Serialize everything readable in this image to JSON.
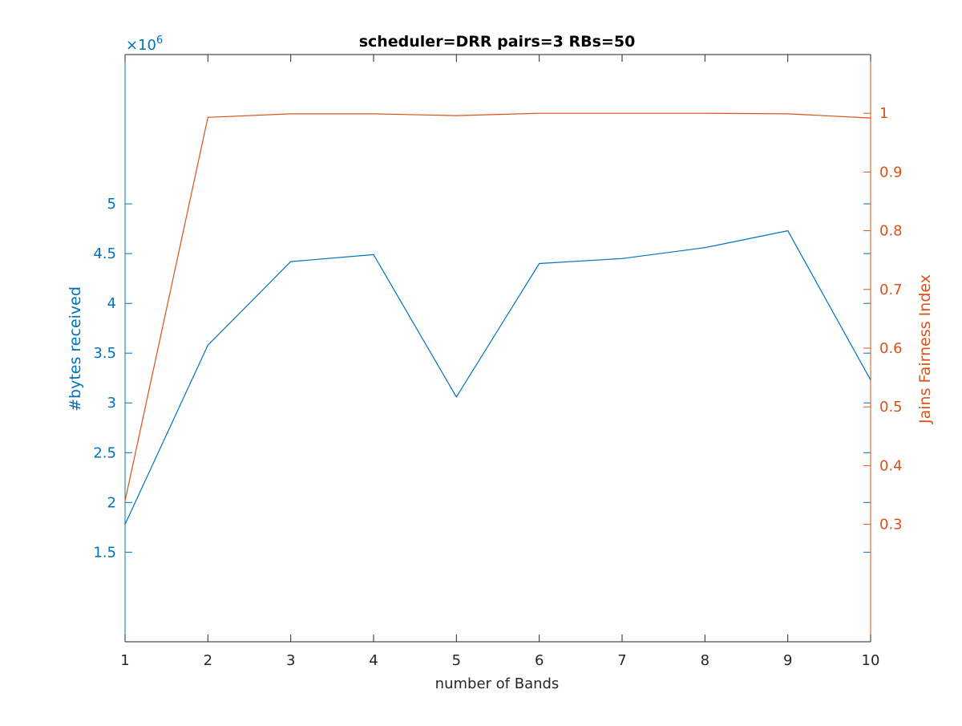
{
  "chart_data": {
    "type": "line",
    "title": "scheduler=DRR pairs=3 RBs=50",
    "xlabel": "number of Bands",
    "x": [
      1,
      2,
      3,
      4,
      5,
      6,
      7,
      8,
      9,
      10
    ],
    "xlim": [
      1,
      10
    ],
    "x_ticks": [
      "1",
      "2",
      "3",
      "4",
      "5",
      "6",
      "7",
      "8",
      "9",
      "10"
    ],
    "grid": false,
    "left_axis": {
      "label": "#bytes received",
      "exponent_label": "×10",
      "exponent_power": "6",
      "ylim": [
        0.6,
        6.5
      ],
      "ticks": [
        1.5,
        2,
        2.5,
        3,
        3.5,
        4,
        4.5,
        5
      ],
      "tick_labels": [
        "1.5",
        "2",
        "2.5",
        "3",
        "3.5",
        "4",
        "4.5",
        "5"
      ],
      "color": "#0072BD"
    },
    "right_axis": {
      "label": "Jains Fairness Index",
      "ylim": [
        0.1,
        1.1
      ],
      "ticks": [
        0.3,
        0.4,
        0.5,
        0.6,
        0.7,
        0.8,
        0.9,
        1
      ],
      "tick_labels": [
        "0.3",
        "0.4",
        "0.5",
        "0.6",
        "0.7",
        "0.8",
        "0.9",
        "1"
      ],
      "color": "#D95319"
    },
    "series": [
      {
        "axis": "left",
        "color": "#0072BD",
        "values": [
          1.78,
          3.58,
          4.42,
          4.49,
          3.06,
          4.4,
          4.45,
          4.56,
          4.73,
          3.23
        ]
      },
      {
        "axis": "right",
        "color": "#D95319",
        "values": [
          0.34,
          0.993,
          0.999,
          0.999,
          0.996,
          1.0,
          1.0,
          1.0,
          0.999,
          0.992
        ]
      }
    ]
  }
}
